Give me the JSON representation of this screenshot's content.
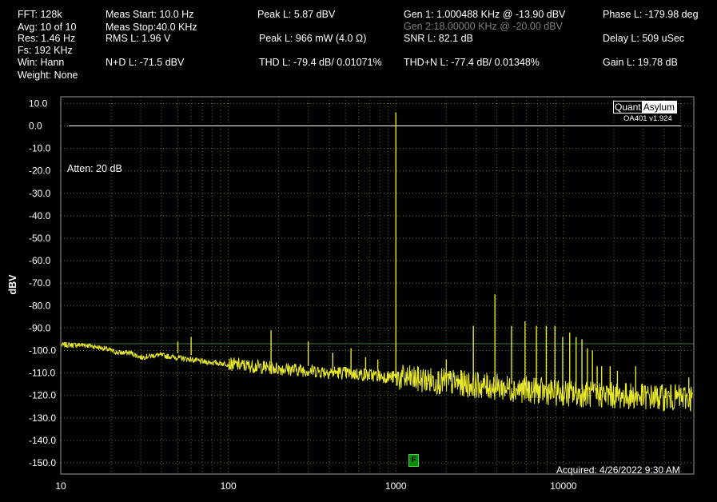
{
  "header": {
    "fft": "FFT:  128k",
    "avg": "Avg:  10 of 10",
    "res": "Res:  1.46 Hz",
    "fs": "Fs:  192 KHz",
    "win": "Win:  Hann",
    "weight": "Weight:  None",
    "meas_start": "Meas Start: 10.0 Hz",
    "meas_stop": "Meas Stop:40.0 KHz",
    "rms": "RMS L:  1.96 V",
    "nd": "N+D L:  -71.5 dBV",
    "peak_dbv": "Peak L:  5.87 dBV",
    "peak_mw": "Peak L:  966 mW (4.0 Ω)",
    "thd": "THD L:  -79.4 dB/ 0.01071%",
    "gen1": "Gen 1:  1.000488 KHz @ -13.90  dBV",
    "gen2": "Gen 2:18.00000 KHz @ -20.00  dBV",
    "snr": "SNR L:  82.1 dB",
    "thdn": "THD+N L:  -77.4 dB/ 0.01348%",
    "phase": "Phase L:  -179.98 deg",
    "delay": "Delay L:  509 uSec",
    "gain": "Gain L:  19.78 dB"
  },
  "overlay": {
    "logo_a": "Quant",
    "logo_b": "Asylum",
    "version": "OA401 v1.924",
    "atten": "Atten: 20 dB",
    "acquired": "Acquired: 4/26/2022  9:30 AM",
    "marker": "F"
  },
  "colors": {
    "trace": "#e8e82a",
    "grid": "#5a7a1e",
    "ref_line": "#ffffff",
    "noise_ref": "#3d7a3d",
    "marker": "#0a8a0a"
  },
  "chart_data": {
    "type": "line",
    "xscale": "log",
    "xlim": [
      10,
      60000
    ],
    "ylim": [
      -155,
      13
    ],
    "ylabel": "dBV",
    "xticks": [
      10,
      100,
      1000,
      10000
    ],
    "xtick_labels": [
      "10",
      "100",
      "1000",
      "10000"
    ],
    "yticks": [
      10,
      0,
      -10,
      -20,
      -30,
      -40,
      -50,
      -60,
      -70,
      -80,
      -90,
      -100,
      -110,
      -120,
      -130,
      -140,
      -150
    ],
    "ytick_labels": [
      "10.0",
      "0.0",
      "-10.0",
      "-20.0",
      "-30.0",
      "-40.0",
      "-50.0",
      "-60.0",
      "-70.0",
      "-80.0",
      "-90.0",
      "-100.0",
      "-110.0",
      "-120.0",
      "-130.0",
      "-140.0",
      "-150.0"
    ],
    "grid": true,
    "reference_lines": [
      {
        "y": 0,
        "color": "#ffffff"
      },
      {
        "y": -97,
        "color": "#3d7a3d"
      }
    ],
    "noise_floor": [
      {
        "x": 10,
        "y": -97.5
      },
      {
        "x": 14,
        "y": -97.5
      },
      {
        "x": 18,
        "y": -99
      },
      {
        "x": 22,
        "y": -101
      },
      {
        "x": 26,
        "y": -101
      },
      {
        "x": 30,
        "y": -103
      },
      {
        "x": 38,
        "y": -102
      },
      {
        "x": 48,
        "y": -103
      },
      {
        "x": 60,
        "y": -104
      },
      {
        "x": 70,
        "y": -105
      },
      {
        "x": 100,
        "y": -106
      },
      {
        "x": 200,
        "y": -108
      },
      {
        "x": 500,
        "y": -110
      },
      {
        "x": 1000,
        "y": -112
      },
      {
        "x": 2000,
        "y": -114
      },
      {
        "x": 5000,
        "y": -117
      },
      {
        "x": 10000,
        "y": -119
      },
      {
        "x": 20000,
        "y": -120
      },
      {
        "x": 40000,
        "y": -121
      }
    ],
    "peaks": [
      {
        "x": 50,
        "y": -96
      },
      {
        "x": 60,
        "y": -94
      },
      {
        "x": 180,
        "y": -91
      },
      {
        "x": 300,
        "y": -96
      },
      {
        "x": 420,
        "y": -101
      },
      {
        "x": 540,
        "y": -99
      },
      {
        "x": 660,
        "y": -103
      },
      {
        "x": 780,
        "y": -104
      },
      {
        "x": 1000,
        "y": 6
      },
      {
        "x": 2000,
        "y": -104
      },
      {
        "x": 2900,
        "y": -89
      },
      {
        "x": 3900,
        "y": -75
      },
      {
        "x": 4900,
        "y": -89
      },
      {
        "x": 5900,
        "y": -87
      },
      {
        "x": 6900,
        "y": -89
      },
      {
        "x": 7900,
        "y": -89
      },
      {
        "x": 8900,
        "y": -89
      },
      {
        "x": 9900,
        "y": -94
      },
      {
        "x": 10900,
        "y": -92
      },
      {
        "x": 11900,
        "y": -94
      },
      {
        "x": 12900,
        "y": -95
      },
      {
        "x": 13900,
        "y": -99
      },
      {
        "x": 14900,
        "y": -100
      },
      {
        "x": 15900,
        "y": -107
      },
      {
        "x": 16900,
        "y": -107
      },
      {
        "x": 19000,
        "y": -107
      },
      {
        "x": 21000,
        "y": -109
      },
      {
        "x": 27000,
        "y": -107
      },
      {
        "x": 56000,
        "y": -112
      }
    ]
  }
}
